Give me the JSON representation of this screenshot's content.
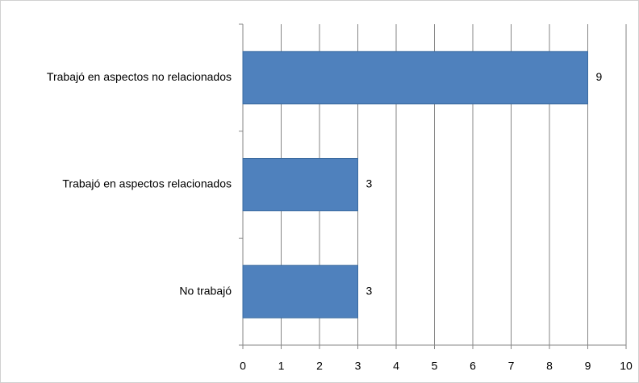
{
  "chart_data": {
    "type": "bar",
    "orientation": "horizontal",
    "categories": [
      "Trabajó en aspectos no relacionados",
      "Trabajó en aspectos relacionados",
      "No trabajó"
    ],
    "values": [
      9,
      3,
      3
    ],
    "color": "#4f81bd",
    "xlim": [
      0,
      10
    ],
    "xticks": [
      0,
      1,
      2,
      3,
      4,
      5,
      6,
      7,
      8,
      9,
      10
    ],
    "grid": true
  }
}
